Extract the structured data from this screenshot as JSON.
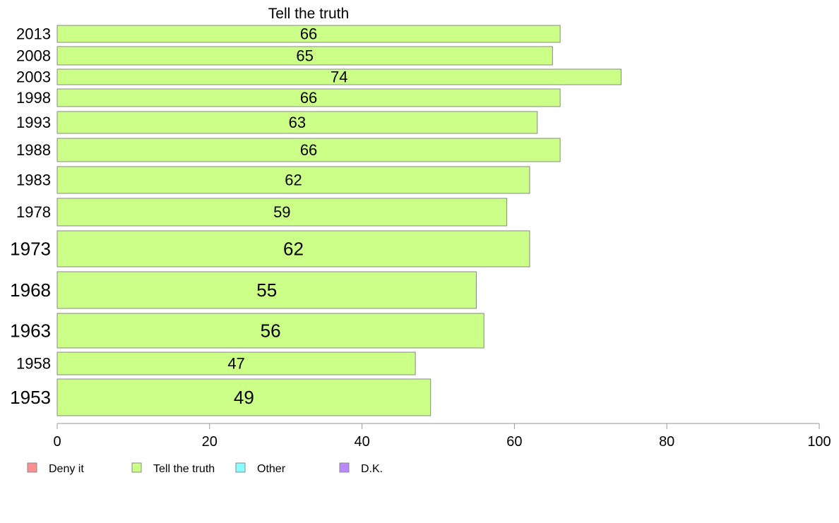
{
  "chart_data": {
    "type": "bar",
    "orientation": "horizontal",
    "title": "Tell the truth",
    "categories": [
      "2013",
      "2008",
      "2003",
      "1998",
      "1993",
      "1988",
      "1983",
      "1978",
      "1973",
      "1968",
      "1963",
      "1958",
      "1953"
    ],
    "series": [
      {
        "name": "Tell the truth",
        "values": [
          66,
          65,
          74,
          66,
          63,
          66,
          62,
          59,
          62,
          55,
          56,
          47,
          49
        ],
        "color": "#ccff88"
      }
    ],
    "bar_outline_color": "#888888",
    "xlim": [
      0,
      100
    ],
    "xticks": [
      "0",
      "20",
      "40",
      "60",
      "80",
      "100"
    ],
    "grid": false,
    "legend": {
      "placement": "bottom-left",
      "items": [
        {
          "label": "Deny it",
          "color": "#ff8f8f"
        },
        {
          "label": "Tell the truth",
          "color": "#ccff88"
        },
        {
          "label": "Other",
          "color": "#88ffff"
        },
        {
          "label": "D.K.",
          "color": "#bb88ff"
        }
      ]
    }
  }
}
